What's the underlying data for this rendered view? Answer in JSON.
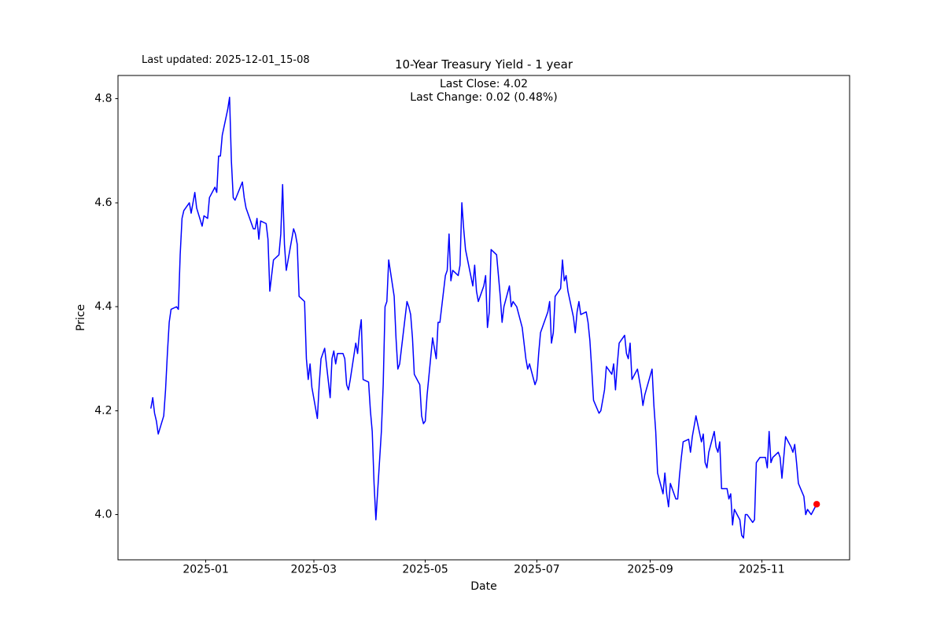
{
  "figure": {
    "title": "10-Year Treasury Yield - 1 year",
    "last_updated": "Last updated: 2025-12-01_15-08",
    "annotation": {
      "line1": "Last Close: 4.02",
      "line2": "Last Change: 0.02 (0.48%)"
    }
  },
  "axes": {
    "xlabel": "Date",
    "ylabel": "Price"
  },
  "colors": {
    "line": "#0000ff",
    "marker": "#ff0000",
    "text": "#000000",
    "spine": "#000000",
    "background": "#ffffff"
  },
  "chart_data": {
    "type": "line",
    "title": "10-Year Treasury Yield - 1 year",
    "xlabel": "Date",
    "ylabel": "Price",
    "grid": false,
    "legend": "none",
    "x_range": [
      "2024-11-14",
      "2025-12-19"
    ],
    "ylim": [
      3.913,
      4.845
    ],
    "yticks": [
      {
        "label": "4.0",
        "value": 4.0
      },
      {
        "label": "4.2",
        "value": 4.2
      },
      {
        "label": "4.4",
        "value": 4.4
      },
      {
        "label": "4.6",
        "value": 4.6
      },
      {
        "label": "4.8",
        "value": 4.8
      }
    ],
    "xticks": [
      {
        "label": "2025-01",
        "date": "2025-01-01"
      },
      {
        "label": "2025-03",
        "date": "2025-03-01"
      },
      {
        "label": "2025-05",
        "date": "2025-05-01"
      },
      {
        "label": "2025-07",
        "date": "2025-07-01"
      },
      {
        "label": "2025-09",
        "date": "2025-09-01"
      },
      {
        "label": "2025-11",
        "date": "2025-11-01"
      }
    ],
    "last_close": 4.02,
    "last_change": "0.02 (0.48%)",
    "line_color": "#0000ff",
    "last_point_marker_color": "#ff0000",
    "series": [
      {
        "name": "10-Year Treasury Yield",
        "dates": [
          "2024-12-02",
          "2024-12-03",
          "2024-12-04",
          "2024-12-05",
          "2024-12-06",
          "2024-12-09",
          "2024-12-10",
          "2024-12-11",
          "2024-12-12",
          "2024-12-13",
          "2024-12-16",
          "2024-12-17",
          "2024-12-18",
          "2024-12-19",
          "2024-12-20",
          "2024-12-23",
          "2024-12-24",
          "2024-12-26",
          "2024-12-27",
          "2024-12-30",
          "2024-12-31",
          "2025-01-02",
          "2025-01-03",
          "2025-01-06",
          "2025-01-07",
          "2025-01-08",
          "2025-01-09",
          "2025-01-10",
          "2025-01-13",
          "2025-01-14",
          "2025-01-15",
          "2025-01-16",
          "2025-01-17",
          "2025-01-21",
          "2025-01-22",
          "2025-01-23",
          "2025-01-24",
          "2025-01-27",
          "2025-01-28",
          "2025-01-29",
          "2025-01-30",
          "2025-01-31",
          "2025-02-03",
          "2025-02-04",
          "2025-02-05",
          "2025-02-06",
          "2025-02-07",
          "2025-02-10",
          "2025-02-11",
          "2025-02-12",
          "2025-02-13",
          "2025-02-14",
          "2025-02-18",
          "2025-02-19",
          "2025-02-20",
          "2025-02-21",
          "2025-02-24",
          "2025-02-25",
          "2025-02-26",
          "2025-02-27",
          "2025-02-28",
          "2025-03-03",
          "2025-03-04",
          "2025-03-05",
          "2025-03-06",
          "2025-03-07",
          "2025-03-10",
          "2025-03-11",
          "2025-03-12",
          "2025-03-13",
          "2025-03-14",
          "2025-03-17",
          "2025-03-18",
          "2025-03-19",
          "2025-03-20",
          "2025-03-21",
          "2025-03-24",
          "2025-03-25",
          "2025-03-26",
          "2025-03-27",
          "2025-03-28",
          "2025-03-31",
          "2025-04-01",
          "2025-04-02",
          "2025-04-03",
          "2025-04-04",
          "2025-04-07",
          "2025-04-08",
          "2025-04-09",
          "2025-04-10",
          "2025-04-11",
          "2025-04-14",
          "2025-04-15",
          "2025-04-16",
          "2025-04-17",
          "2025-04-21",
          "2025-04-22",
          "2025-04-23",
          "2025-04-24",
          "2025-04-25",
          "2025-04-28",
          "2025-04-29",
          "2025-04-30",
          "2025-05-01",
          "2025-05-02",
          "2025-05-05",
          "2025-05-06",
          "2025-05-07",
          "2025-05-08",
          "2025-05-09",
          "2025-05-12",
          "2025-05-13",
          "2025-05-14",
          "2025-05-15",
          "2025-05-16",
          "2025-05-19",
          "2025-05-20",
          "2025-05-21",
          "2025-05-22",
          "2025-05-23",
          "2025-05-27",
          "2025-05-28",
          "2025-05-29",
          "2025-05-30",
          "2025-06-02",
          "2025-06-03",
          "2025-06-04",
          "2025-06-05",
          "2025-06-06",
          "2025-06-09",
          "2025-06-10",
          "2025-06-11",
          "2025-06-12",
          "2025-06-13",
          "2025-06-16",
          "2025-06-17",
          "2025-06-18",
          "2025-06-20",
          "2025-06-23",
          "2025-06-24",
          "2025-06-25",
          "2025-06-26",
          "2025-06-27",
          "2025-06-30",
          "2025-07-01",
          "2025-07-02",
          "2025-07-03",
          "2025-07-07",
          "2025-07-08",
          "2025-07-09",
          "2025-07-10",
          "2025-07-11",
          "2025-07-14",
          "2025-07-15",
          "2025-07-16",
          "2025-07-17",
          "2025-07-18",
          "2025-07-21",
          "2025-07-22",
          "2025-07-23",
          "2025-07-24",
          "2025-07-25",
          "2025-07-28",
          "2025-07-29",
          "2025-07-30",
          "2025-07-31",
          "2025-08-01",
          "2025-08-04",
          "2025-08-05",
          "2025-08-06",
          "2025-08-07",
          "2025-08-08",
          "2025-08-11",
          "2025-08-12",
          "2025-08-13",
          "2025-08-14",
          "2025-08-15",
          "2025-08-18",
          "2025-08-19",
          "2025-08-20",
          "2025-08-21",
          "2025-08-22",
          "2025-08-25",
          "2025-08-26",
          "2025-08-27",
          "2025-08-28",
          "2025-08-29",
          "2025-09-02",
          "2025-09-03",
          "2025-09-04",
          "2025-09-05",
          "2025-09-08",
          "2025-09-09",
          "2025-09-10",
          "2025-09-11",
          "2025-09-12",
          "2025-09-15",
          "2025-09-16",
          "2025-09-17",
          "2025-09-18",
          "2025-09-19",
          "2025-09-22",
          "2025-09-23",
          "2025-09-24",
          "2025-09-25",
          "2025-09-26",
          "2025-09-29",
          "2025-09-30",
          "2025-10-01",
          "2025-10-02",
          "2025-10-03",
          "2025-10-06",
          "2025-10-07",
          "2025-10-08",
          "2025-10-09",
          "2025-10-10",
          "2025-10-13",
          "2025-10-14",
          "2025-10-15",
          "2025-10-16",
          "2025-10-17",
          "2025-10-20",
          "2025-10-21",
          "2025-10-22",
          "2025-10-23",
          "2025-10-24",
          "2025-10-27",
          "2025-10-28",
          "2025-10-29",
          "2025-10-30",
          "2025-10-31",
          "2025-11-03",
          "2025-11-04",
          "2025-11-05",
          "2025-11-06",
          "2025-11-07",
          "2025-11-10",
          "2025-11-11",
          "2025-11-12",
          "2025-11-13",
          "2025-11-14",
          "2025-11-17",
          "2025-11-18",
          "2025-11-19",
          "2025-11-20",
          "2025-11-21",
          "2025-11-24",
          "2025-11-25",
          "2025-11-26",
          "2025-11-28",
          "2025-12-01"
        ],
        "values": [
          4.205,
          4.225,
          4.195,
          4.18,
          4.155,
          4.19,
          4.24,
          4.31,
          4.37,
          4.395,
          4.4,
          4.395,
          4.5,
          4.57,
          4.585,
          4.6,
          4.58,
          4.62,
          4.59,
          4.555,
          4.575,
          4.57,
          4.61,
          4.63,
          4.62,
          4.69,
          4.69,
          4.73,
          4.78,
          4.803,
          4.68,
          4.61,
          4.605,
          4.64,
          4.61,
          4.59,
          4.58,
          4.55,
          4.55,
          4.57,
          4.53,
          4.565,
          4.56,
          4.53,
          4.43,
          4.46,
          4.49,
          4.5,
          4.54,
          4.635,
          4.52,
          4.47,
          4.55,
          4.54,
          4.52,
          4.42,
          4.41,
          4.3,
          4.26,
          4.29,
          4.245,
          4.185,
          4.25,
          4.3,
          4.31,
          4.32,
          4.225,
          4.3,
          4.315,
          4.29,
          4.31,
          4.31,
          4.3,
          4.25,
          4.24,
          4.26,
          4.33,
          4.31,
          4.35,
          4.375,
          4.26,
          4.255,
          4.2,
          4.16,
          4.06,
          3.99,
          4.16,
          4.25,
          4.4,
          4.41,
          4.49,
          4.42,
          4.34,
          4.28,
          4.29,
          4.41,
          4.4,
          4.385,
          4.34,
          4.27,
          4.25,
          4.19,
          4.175,
          4.18,
          4.23,
          4.34,
          4.32,
          4.3,
          4.37,
          4.37,
          4.46,
          4.47,
          4.54,
          4.45,
          4.47,
          4.46,
          4.48,
          4.6,
          4.55,
          4.51,
          4.44,
          4.48,
          4.43,
          4.41,
          4.44,
          4.46,
          4.36,
          4.39,
          4.51,
          4.5,
          4.46,
          4.42,
          4.37,
          4.4,
          4.44,
          4.4,
          4.41,
          4.4,
          4.36,
          4.33,
          4.3,
          4.28,
          4.29,
          4.25,
          4.26,
          4.31,
          4.35,
          4.39,
          4.41,
          4.33,
          4.35,
          4.42,
          4.435,
          4.49,
          4.45,
          4.46,
          4.43,
          4.38,
          4.35,
          4.39,
          4.41,
          4.385,
          4.39,
          4.37,
          4.335,
          4.28,
          4.22,
          4.195,
          4.2,
          4.22,
          4.24,
          4.285,
          4.27,
          4.29,
          4.24,
          4.29,
          4.33,
          4.345,
          4.31,
          4.3,
          4.33,
          4.26,
          4.28,
          4.26,
          4.24,
          4.21,
          4.23,
          4.28,
          4.21,
          4.16,
          4.08,
          4.04,
          4.08,
          4.04,
          4.015,
          4.06,
          4.03,
          4.03,
          4.075,
          4.11,
          4.14,
          4.145,
          4.12,
          4.15,
          4.17,
          4.19,
          4.14,
          4.155,
          4.1,
          4.09,
          4.12,
          4.16,
          4.13,
          4.12,
          4.14,
          4.05,
          4.05,
          4.03,
          4.04,
          3.98,
          4.01,
          3.99,
          3.96,
          3.955,
          4.0,
          4.0,
          3.985,
          3.99,
          4.1,
          4.105,
          4.11,
          4.11,
          4.09,
          4.16,
          4.1,
          4.11,
          4.12,
          4.11,
          4.07,
          4.11,
          4.15,
          4.13,
          4.12,
          4.135,
          4.1,
          4.06,
          4.035,
          4.0,
          4.01,
          4.0,
          4.02
        ]
      }
    ]
  }
}
